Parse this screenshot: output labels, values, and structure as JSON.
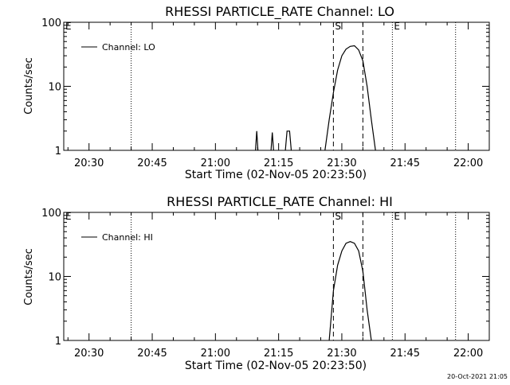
{
  "footer": {
    "timestamp": "20-Oct-2021 21:05"
  },
  "chart_data": [
    {
      "type": "line",
      "title": "RHESSI PARTICLE_RATE Channel: LO",
      "xlabel": "Start Time (02-Nov-05 20:23:50)",
      "ylabel": "Counts/sec",
      "yscale": "log",
      "ylim": [
        1,
        100
      ],
      "xlim": [
        "20:24",
        "22:05"
      ],
      "xticks": [
        "20:30",
        "20:45",
        "21:00",
        "21:15",
        "21:30",
        "21:45",
        "22:00"
      ],
      "yticks": [
        "1",
        "10",
        "100"
      ],
      "legend": {
        "label": "Channel: LO",
        "position": "top-left"
      },
      "markers": [
        {
          "label": "E",
          "time": "20:24",
          "style": "dotted"
        },
        {
          "label": "",
          "time": "20:40",
          "style": "dotted"
        },
        {
          "label": "S",
          "time": "21:28",
          "style": "dashed"
        },
        {
          "label": "",
          "time": "21:35",
          "style": "dashed"
        },
        {
          "label": "E",
          "time": "21:42",
          "style": "dotted"
        },
        {
          "label": "",
          "time": "21:57",
          "style": "dotted"
        }
      ],
      "series": [
        {
          "name": "Channel: LO",
          "segments": [
            [
              [
                "21:09.5",
                1
              ],
              [
                "21:09.8",
                2
              ],
              [
                "21:10.1",
                1
              ]
            ],
            [
              [
                "21:13.2",
                1
              ],
              [
                "21:13.5",
                1.9
              ],
              [
                "21:13.8",
                1
              ]
            ],
            [
              [
                "21:16.6",
                1
              ],
              [
                "21:17.0",
                2
              ],
              [
                "21:17.6",
                2
              ],
              [
                "21:18.0",
                1
              ]
            ],
            [
              [
                "21:26.0",
                1
              ],
              [
                "21:27.0",
                3
              ],
              [
                "21:28.0",
                8
              ],
              [
                "21:29.0",
                18
              ],
              [
                "21:30.0",
                30
              ],
              [
                "21:31.0",
                38
              ],
              [
                "21:32.0",
                42
              ],
              [
                "21:33.0",
                43
              ],
              [
                "21:34.0",
                37
              ],
              [
                "21:35.0",
                25
              ],
              [
                "21:36.0",
                10
              ],
              [
                "21:37.0",
                3
              ],
              [
                "21:38.0",
                1
              ]
            ]
          ]
        }
      ]
    },
    {
      "type": "line",
      "title": "RHESSI PARTICLE_RATE Channel: HI",
      "xlabel": "Start Time (02-Nov-05 20:23:50)",
      "ylabel": "Counts/sec",
      "yscale": "log",
      "ylim": [
        1,
        100
      ],
      "xlim": [
        "20:24",
        "22:05"
      ],
      "xticks": [
        "20:30",
        "20:45",
        "21:00",
        "21:15",
        "21:30",
        "21:45",
        "22:00"
      ],
      "yticks": [
        "1",
        "10",
        "100"
      ],
      "legend": {
        "label": "Channel: HI",
        "position": "top-left"
      },
      "markers": [
        {
          "label": "E",
          "time": "20:24",
          "style": "dotted"
        },
        {
          "label": "",
          "time": "20:40",
          "style": "dotted"
        },
        {
          "label": "S",
          "time": "21:28",
          "style": "dashed"
        },
        {
          "label": "",
          "time": "21:35",
          "style": "dashed"
        },
        {
          "label": "E",
          "time": "21:42",
          "style": "dotted"
        },
        {
          "label": "",
          "time": "21:57",
          "style": "dotted"
        }
      ],
      "series": [
        {
          "name": "Channel: HI",
          "segments": [
            [
              [
                "21:27.0",
                1
              ],
              [
                "21:28.0",
                6
              ],
              [
                "21:29.0",
                15
              ],
              [
                "21:30.0",
                25
              ],
              [
                "21:31.0",
                33
              ],
              [
                "21:32.0",
                35
              ],
              [
                "21:33.0",
                33
              ],
              [
                "21:34.0",
                25
              ],
              [
                "21:35.0",
                12
              ],
              [
                "21:36.0",
                3
              ],
              [
                "21:37.0",
                1
              ]
            ]
          ]
        }
      ]
    }
  ]
}
